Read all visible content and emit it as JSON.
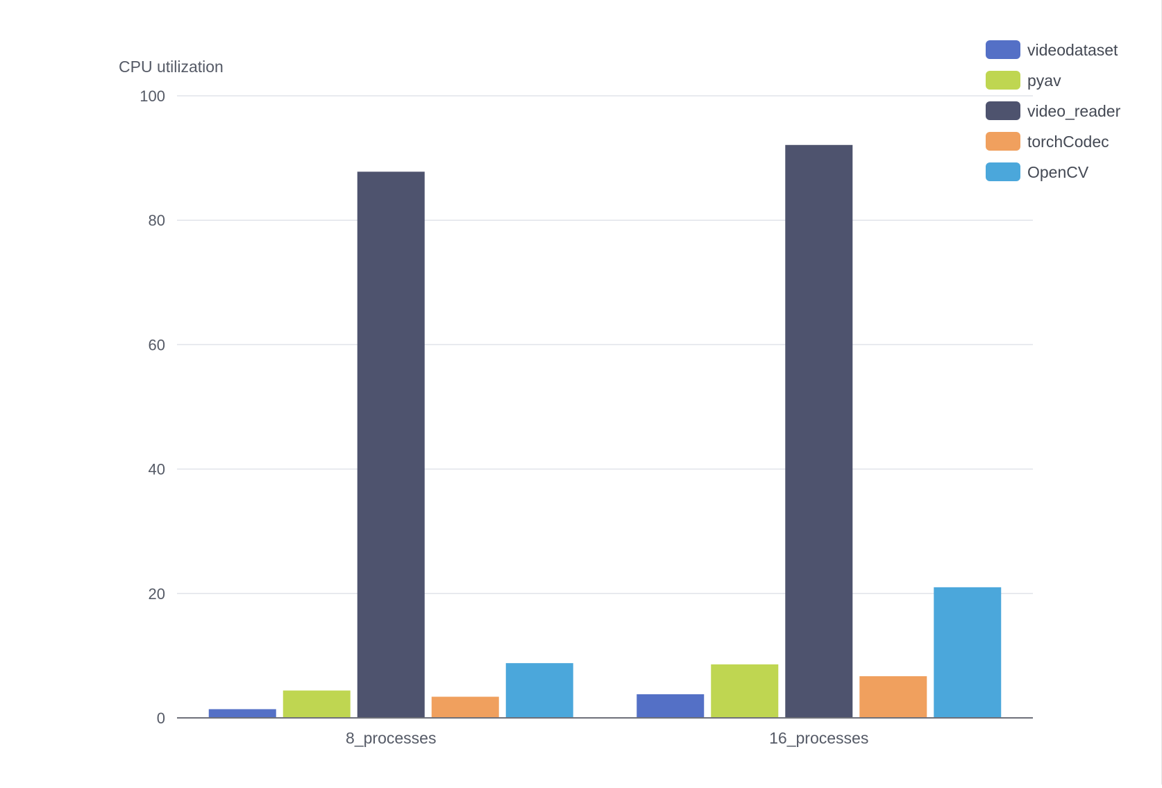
{
  "chart_data": {
    "type": "bar",
    "ylabel": "CPU utilization",
    "xlabel": "",
    "ylim": [
      0,
      100
    ],
    "yticks": [
      0,
      20,
      40,
      60,
      80,
      100
    ],
    "grid": true,
    "legend_position": "top-right",
    "categories": [
      "8_processes",
      "16_processes"
    ],
    "series": [
      {
        "name": "videodataset",
        "color": "#5470c6",
        "values": [
          1.4,
          3.8
        ]
      },
      {
        "name": "pyav",
        "color": "#bfd651",
        "values": [
          4.4,
          8.6
        ]
      },
      {
        "name": "video_reader",
        "color": "#4e536e",
        "values": [
          87.8,
          92.1
        ]
      },
      {
        "name": "torchCodec",
        "color": "#f0a05e",
        "values": [
          3.4,
          6.7
        ]
      },
      {
        "name": "OpenCV",
        "color": "#4ba7db",
        "values": [
          8.8,
          21.0
        ]
      }
    ]
  }
}
